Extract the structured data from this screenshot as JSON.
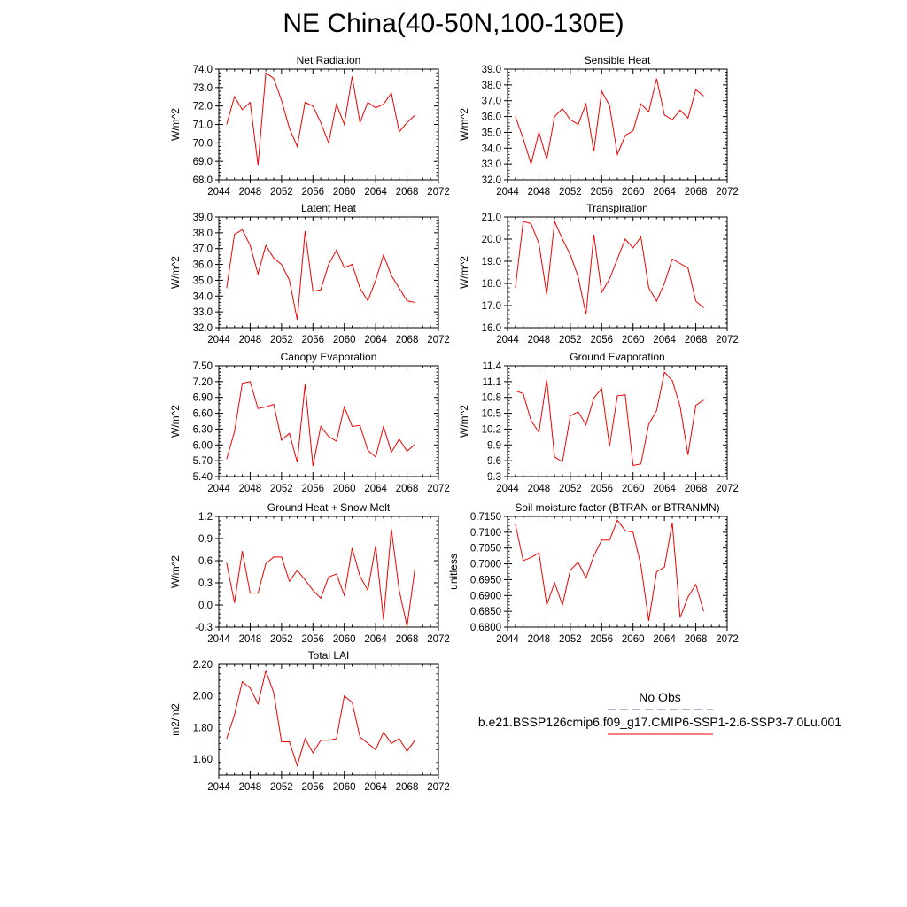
{
  "page_title": "NE China(40-50N,100-130E)",
  "legend": {
    "obs_label": "No Obs",
    "obs_color": "#6b68b0",
    "model_label": "b.e21.BSSP126cmip6.f09_g17.CMIP6-SSP1-2.6-SSP3-7.0Lu.001",
    "model_color": "#ee0000"
  },
  "chart_data": [
    {
      "type": "line",
      "title": "Net Radiation",
      "ylabel": "W/m^2",
      "xlim": [
        2044,
        2072
      ],
      "xticks": [
        "2044",
        "2048",
        "2052",
        "2056",
        "2060",
        "2064",
        "2068",
        "2072"
      ],
      "ylim": [
        68.0,
        74.0
      ],
      "yticks": [
        "68.0",
        "69.0",
        "70.0",
        "71.0",
        "72.0",
        "73.0",
        "74.0"
      ],
      "x": [
        2045,
        2046,
        2047,
        2048,
        2049,
        2050,
        2051,
        2052,
        2053,
        2054,
        2055,
        2056,
        2057,
        2058,
        2059,
        2060,
        2061,
        2062,
        2063,
        2064,
        2065,
        2066,
        2067,
        2068,
        2069
      ],
      "series": [
        {
          "values": [
            71.0,
            72.5,
            71.8,
            72.2,
            68.8,
            73.8,
            73.5,
            72.3,
            70.8,
            69.8,
            72.2,
            72.0,
            71.1,
            70.0,
            72.1,
            71.0,
            73.6,
            71.1,
            72.2,
            71.9,
            72.1,
            72.7,
            70.6,
            71.1,
            71.5
          ]
        }
      ]
    },
    {
      "type": "line",
      "title": "Sensible Heat",
      "ylabel": "W/m^2",
      "xlim": [
        2044,
        2072
      ],
      "xticks": [
        "2044",
        "2048",
        "2052",
        "2056",
        "2060",
        "2064",
        "2068",
        "2072"
      ],
      "ylim": [
        32.0,
        39.0
      ],
      "yticks": [
        "32.0",
        "33.0",
        "34.0",
        "35.0",
        "36.0",
        "37.0",
        "38.0",
        "39.0"
      ],
      "x": [
        2045,
        2046,
        2047,
        2048,
        2049,
        2050,
        2051,
        2052,
        2053,
        2054,
        2055,
        2056,
        2057,
        2058,
        2059,
        2060,
        2061,
        2062,
        2063,
        2064,
        2065,
        2066,
        2067,
        2068,
        2069
      ],
      "series": [
        {
          "values": [
            36.0,
            34.6,
            33.0,
            35.0,
            33.3,
            36.0,
            36.5,
            35.8,
            35.5,
            36.8,
            33.8,
            37.6,
            36.7,
            33.6,
            34.8,
            35.1,
            36.8,
            36.3,
            38.4,
            36.1,
            35.8,
            36.4,
            35.9,
            37.7,
            37.3
          ]
        }
      ]
    },
    {
      "type": "line",
      "title": "Latent Heat",
      "ylabel": "W/m^2",
      "xlim": [
        2044,
        2072
      ],
      "xticks": [
        "2044",
        "2048",
        "2052",
        "2056",
        "2060",
        "2064",
        "2068",
        "2072"
      ],
      "ylim": [
        32.0,
        39.0
      ],
      "yticks": [
        "32.0",
        "33.0",
        "34.0",
        "35.0",
        "36.0",
        "37.0",
        "38.0",
        "39.0"
      ],
      "x": [
        2045,
        2046,
        2047,
        2048,
        2049,
        2050,
        2051,
        2052,
        2053,
        2054,
        2055,
        2056,
        2057,
        2058,
        2059,
        2060,
        2061,
        2062,
        2063,
        2064,
        2065,
        2066,
        2067,
        2068,
        2069
      ],
      "series": [
        {
          "values": [
            34.5,
            37.9,
            38.2,
            37.2,
            35.4,
            37.2,
            36.4,
            36.0,
            35.0,
            32.5,
            38.1,
            34.3,
            34.4,
            36.0,
            36.9,
            35.8,
            36.0,
            34.5,
            33.7,
            35.0,
            36.6,
            35.3,
            34.5,
            33.7,
            33.6
          ]
        }
      ]
    },
    {
      "type": "line",
      "title": "Transpiration",
      "ylabel": "W/m^2",
      "xlim": [
        2044,
        2072
      ],
      "xticks": [
        "2044",
        "2048",
        "2052",
        "2056",
        "2060",
        "2064",
        "2068",
        "2072"
      ],
      "ylim": [
        16.0,
        21.0
      ],
      "yticks": [
        "16.0",
        "17.0",
        "18.0",
        "19.0",
        "20.0",
        "21.0"
      ],
      "x": [
        2045,
        2046,
        2047,
        2048,
        2049,
        2050,
        2051,
        2052,
        2053,
        2054,
        2055,
        2056,
        2057,
        2058,
        2059,
        2060,
        2061,
        2062,
        2063,
        2064,
        2065,
        2066,
        2067,
        2068,
        2069
      ],
      "series": [
        {
          "values": [
            17.8,
            20.8,
            20.7,
            19.8,
            17.5,
            20.8,
            20.0,
            19.3,
            18.3,
            16.6,
            20.2,
            17.6,
            18.2,
            19.1,
            20.0,
            19.6,
            20.1,
            17.8,
            17.2,
            18.0,
            19.1,
            18.9,
            18.7,
            17.2,
            16.9
          ]
        }
      ]
    },
    {
      "type": "line",
      "title": "Canopy Evaporation",
      "ylabel": "W/m^2",
      "xlim": [
        2044,
        2072
      ],
      "xticks": [
        "2044",
        "2048",
        "2052",
        "2056",
        "2060",
        "2064",
        "2068",
        "2072"
      ],
      "ylim": [
        5.4,
        7.5
      ],
      "yticks": [
        "5.40",
        "5.70",
        "6.00",
        "6.30",
        "6.60",
        "6.90",
        "7.20",
        "7.50"
      ],
      "x": [
        2045,
        2046,
        2047,
        2048,
        2049,
        2050,
        2051,
        2052,
        2053,
        2054,
        2055,
        2056,
        2057,
        2058,
        2059,
        2060,
        2061,
        2062,
        2063,
        2064,
        2065,
        2066,
        2067,
        2068,
        2069
      ],
      "series": [
        {
          "values": [
            5.73,
            6.25,
            7.17,
            7.2,
            6.69,
            6.72,
            6.77,
            6.09,
            6.22,
            5.67,
            7.15,
            5.6,
            6.35,
            6.16,
            6.07,
            6.72,
            6.35,
            6.37,
            5.9,
            5.77,
            6.35,
            5.86,
            6.11,
            5.88,
            6.01
          ]
        }
      ]
    },
    {
      "type": "line",
      "title": "Ground Evaporation",
      "ylabel": "W/m^2",
      "xlim": [
        2044,
        2072
      ],
      "xticks": [
        "2044",
        "2048",
        "2052",
        "2056",
        "2060",
        "2064",
        "2068",
        "2072"
      ],
      "ylim": [
        9.3,
        11.4
      ],
      "yticks": [
        "9.3",
        "9.6",
        "9.9",
        "10.2",
        "10.5",
        "10.8",
        "11.1",
        "11.4"
      ],
      "x": [
        2045,
        2046,
        2047,
        2048,
        2049,
        2050,
        2051,
        2052,
        2053,
        2054,
        2055,
        2056,
        2057,
        2058,
        2059,
        2060,
        2061,
        2062,
        2063,
        2064,
        2065,
        2066,
        2067,
        2068,
        2069
      ],
      "series": [
        {
          "values": [
            10.93,
            10.87,
            10.36,
            10.14,
            11.14,
            9.67,
            9.58,
            10.45,
            10.53,
            10.28,
            10.79,
            10.97,
            9.87,
            10.83,
            10.85,
            9.51,
            9.54,
            10.29,
            10.55,
            11.28,
            11.12,
            10.63,
            9.71,
            10.65,
            10.75
          ]
        }
      ]
    },
    {
      "type": "line",
      "title": "Ground Heat + Snow Melt",
      "ylabel": "W/m^2",
      "xlim": [
        2044,
        2072
      ],
      "xticks": [
        "2044",
        "2048",
        "2052",
        "2056",
        "2060",
        "2064",
        "2068",
        "2072"
      ],
      "ylim": [
        -0.3,
        1.2
      ],
      "yticks": [
        "-0.3",
        "0.0",
        "0.3",
        "0.6",
        "0.9",
        "1.2"
      ],
      "x": [
        2045,
        2046,
        2047,
        2048,
        2049,
        2050,
        2051,
        2052,
        2053,
        2054,
        2055,
        2056,
        2057,
        2058,
        2059,
        2060,
        2061,
        2062,
        2063,
        2064,
        2065,
        2066,
        2067,
        2068,
        2069
      ],
      "series": [
        {
          "values": [
            0.57,
            0.03,
            0.73,
            0.16,
            0.16,
            0.56,
            0.65,
            0.65,
            0.32,
            0.47,
            0.34,
            0.2,
            0.09,
            0.38,
            0.42,
            0.13,
            0.77,
            0.39,
            0.2,
            0.8,
            -0.2,
            1.03,
            0.2,
            -0.29,
            0.49
          ]
        }
      ]
    },
    {
      "type": "line",
      "title": "Soil moisture factor (BTRAN or BTRANMN)",
      "ylabel": "unitless",
      "xlim": [
        2044,
        2072
      ],
      "xticks": [
        "2044",
        "2048",
        "2052",
        "2056",
        "2060",
        "2064",
        "2068",
        "2072"
      ],
      "ylim": [
        0.68,
        0.715
      ],
      "yticks": [
        "0.6800",
        "0.6850",
        "0.6900",
        "0.6950",
        "0.7000",
        "0.7050",
        "0.7100",
        "0.7150"
      ],
      "x": [
        2045,
        2046,
        2047,
        2048,
        2049,
        2050,
        2051,
        2052,
        2053,
        2054,
        2055,
        2056,
        2057,
        2058,
        2059,
        2060,
        2061,
        2062,
        2063,
        2064,
        2065,
        2066,
        2067,
        2068,
        2069
      ],
      "series": [
        {
          "values": [
            0.7125,
            0.701,
            0.702,
            0.7035,
            0.687,
            0.694,
            0.687,
            0.698,
            0.7005,
            0.6955,
            0.7025,
            0.7075,
            0.7075,
            0.7138,
            0.7105,
            0.71,
            0.6995,
            0.682,
            0.6975,
            0.699,
            0.713,
            0.683,
            0.6895,
            0.6935,
            0.685
          ]
        }
      ]
    },
    {
      "type": "line",
      "title": "Total LAI",
      "ylabel": "m2/m2",
      "xlim": [
        2044,
        2072
      ],
      "xticks": [
        "2044",
        "2048",
        "2052",
        "2056",
        "2060",
        "2064",
        "2068",
        "2072"
      ],
      "ylim": [
        1.5,
        2.2
      ],
      "yticks": [
        "1.60",
        "1.80",
        "2.00",
        "2.20"
      ],
      "x": [
        2045,
        2046,
        2047,
        2048,
        2049,
        2050,
        2051,
        2052,
        2053,
        2054,
        2055,
        2056,
        2057,
        2058,
        2059,
        2060,
        2061,
        2062,
        2063,
        2064,
        2065,
        2066,
        2067,
        2068,
        2069
      ],
      "series": [
        {
          "values": [
            1.73,
            1.88,
            2.09,
            2.05,
            1.95,
            2.16,
            2.02,
            1.71,
            1.71,
            1.56,
            1.73,
            1.64,
            1.72,
            1.72,
            1.73,
            2.0,
            1.96,
            1.74,
            1.7,
            1.66,
            1.77,
            1.7,
            1.73,
            1.65,
            1.72
          ]
        }
      ]
    }
  ]
}
